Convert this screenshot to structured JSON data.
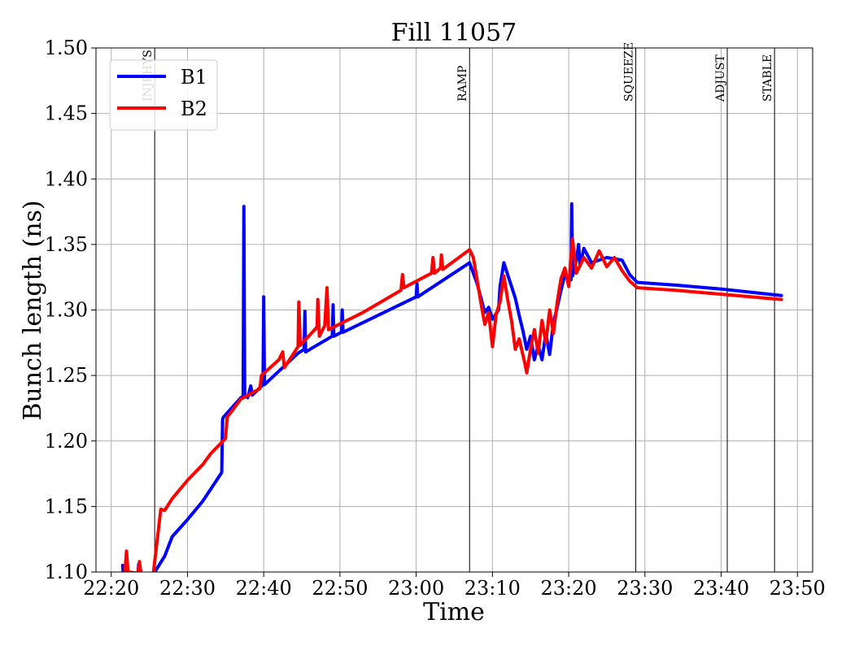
{
  "chart_data": {
    "type": "line",
    "title": "Fill 11057",
    "xlabel": "Time",
    "ylabel": "Bunch length (ns)",
    "xlim": [
      "22:18",
      "23:52"
    ],
    "ylim": [
      1.1,
      1.5
    ],
    "grid": true,
    "legend_position": "top-left",
    "x_ticks": [
      "22:20",
      "22:30",
      "22:40",
      "22:50",
      "23:00",
      "23:10",
      "23:20",
      "23:30",
      "23:40",
      "23:50"
    ],
    "y_ticks": [
      "1.10",
      "1.15",
      "1.20",
      "1.25",
      "1.30",
      "1.35",
      "1.40",
      "1.45",
      "1.50"
    ],
    "phases": [
      {
        "label": "INJPHYS",
        "time": "22:25.7"
      },
      {
        "label": "RAMP",
        "time": "23:07.0"
      },
      {
        "label": "SQUEEZE",
        "time": "23:28.8"
      },
      {
        "label": "ADJUST",
        "time": "23:40.8"
      },
      {
        "label": "STABLE",
        "time": "23:47.0"
      }
    ],
    "series": [
      {
        "name": "B1",
        "color": "#0000ff",
        "points": [
          [
            "22:21.5",
            1.105
          ],
          [
            "22:21.6",
            1.098
          ],
          [
            "22:23.5",
            1.098
          ],
          [
            "22:23.6",
            1.106
          ],
          [
            "22:23.7",
            1.098
          ],
          [
            "22:25.5",
            1.098
          ],
          [
            "22:27.0",
            1.112
          ],
          [
            "22:28.0",
            1.127
          ],
          [
            "22:30.0",
            1.14
          ],
          [
            "22:32.0",
            1.154
          ],
          [
            "22:34.5",
            1.176
          ],
          [
            "22:34.6",
            1.216
          ],
          [
            "22:34.7",
            1.218
          ],
          [
            "22:37.0",
            1.233
          ],
          [
            "22:37.3",
            1.234
          ],
          [
            "22:37.4",
            1.379
          ],
          [
            "22:37.5",
            1.235
          ],
          [
            "22:37.9",
            1.233
          ],
          [
            "22:38.3",
            1.242
          ],
          [
            "22:38.5",
            1.235
          ],
          [
            "22:39.9",
            1.243
          ],
          [
            "22:40.0",
            1.31
          ],
          [
            "22:40.1",
            1.243
          ],
          [
            "22:44.5",
            1.267
          ],
          [
            "22:45.3",
            1.27
          ],
          [
            "22:45.4",
            1.299
          ],
          [
            "22:45.5",
            1.268
          ],
          [
            "22:49.0",
            1.28
          ],
          [
            "22:49.1",
            1.304
          ],
          [
            "22:49.2",
            1.28
          ],
          [
            "22:50.2",
            1.283
          ],
          [
            "22:50.3",
            1.3
          ],
          [
            "22:50.4",
            1.283
          ],
          [
            "23:00.0",
            1.31
          ],
          [
            "23:00.1",
            1.32
          ],
          [
            "23:00.2",
            1.31
          ],
          [
            "23:07.0",
            1.336
          ],
          [
            "23:08.0",
            1.32
          ],
          [
            "23:09.0",
            1.298
          ],
          [
            "23:09.5",
            1.302
          ],
          [
            "23:10.0",
            1.293
          ],
          [
            "23:10.8",
            1.3
          ],
          [
            "23:11.0",
            1.318
          ],
          [
            "23:11.5",
            1.336
          ],
          [
            "23:12.0",
            1.327
          ],
          [
            "23:12.5",
            1.318
          ],
          [
            "23:13.0",
            1.309
          ],
          [
            "23:13.5",
            1.296
          ],
          [
            "23:14.0",
            1.284
          ],
          [
            "23:14.5",
            1.27
          ],
          [
            "23:15.0",
            1.28
          ],
          [
            "23:15.5",
            1.262
          ],
          [
            "23:16.0",
            1.273
          ],
          [
            "23:16.5",
            1.262
          ],
          [
            "23:17.0",
            1.282
          ],
          [
            "23:17.5",
            1.266
          ],
          [
            "23:18.0",
            1.29
          ],
          [
            "23:18.5",
            1.302
          ],
          [
            "23:19.0",
            1.315
          ],
          [
            "23:19.5",
            1.327
          ],
          [
            "23:20.3",
            1.323
          ],
          [
            "23:20.4",
            1.381
          ],
          [
            "23:20.5",
            1.326
          ],
          [
            "23:21.0",
            1.338
          ],
          [
            "23:21.3",
            1.35
          ],
          [
            "23:21.5",
            1.334
          ],
          [
            "23:22.0",
            1.347
          ],
          [
            "23:23.0",
            1.336
          ],
          [
            "23:25.0",
            1.34
          ],
          [
            "23:27.0",
            1.338
          ],
          [
            "23:28.0",
            1.327
          ],
          [
            "23:29.0",
            1.321
          ],
          [
            "23:34.0",
            1.319
          ],
          [
            "23:40.0",
            1.316
          ],
          [
            "23:47.9",
            1.311
          ]
        ]
      },
      {
        "name": "B2",
        "color": "#ff0000",
        "points": [
          [
            "22:21.8",
            1.1
          ],
          [
            "22:22.0",
            1.116
          ],
          [
            "22:22.2",
            1.1
          ],
          [
            "22:23.5",
            1.099
          ],
          [
            "22:23.7",
            1.108
          ],
          [
            "22:23.9",
            1.099
          ],
          [
            "22:25.5",
            1.098
          ],
          [
            "22:26.5",
            1.148
          ],
          [
            "22:27.0",
            1.147
          ],
          [
            "22:28.0",
            1.156
          ],
          [
            "22:30.0",
            1.17
          ],
          [
            "22:32.0",
            1.182
          ],
          [
            "22:33.0",
            1.19
          ],
          [
            "22:35.0",
            1.202
          ],
          [
            "22:35.2",
            1.218
          ],
          [
            "22:37.0",
            1.232
          ],
          [
            "22:39.5",
            1.24
          ],
          [
            "22:39.7",
            1.25
          ],
          [
            "22:42.0",
            1.262
          ],
          [
            "22:42.5",
            1.268
          ],
          [
            "22:42.7",
            1.256
          ],
          [
            "22:44.5",
            1.272
          ],
          [
            "22:44.6",
            1.306
          ],
          [
            "22:44.8",
            1.273
          ],
          [
            "22:47.0",
            1.287
          ],
          [
            "22:47.1",
            1.308
          ],
          [
            "22:47.3",
            1.28
          ],
          [
            "22:48.0",
            1.288
          ],
          [
            "22:48.3",
            1.317
          ],
          [
            "22:48.5",
            1.285
          ],
          [
            "22:53.0",
            1.298
          ],
          [
            "22:58.0",
            1.315
          ],
          [
            "22:58.2",
            1.327
          ],
          [
            "22:58.4",
            1.317
          ],
          [
            "23:02.0",
            1.328
          ],
          [
            "23:02.2",
            1.34
          ],
          [
            "23:02.4",
            1.328
          ],
          [
            "23:03.2",
            1.332
          ],
          [
            "23:03.3",
            1.342
          ],
          [
            "23:03.5",
            1.331
          ],
          [
            "23:07.0",
            1.346
          ],
          [
            "23:07.5",
            1.34
          ],
          [
            "23:08.5",
            1.305
          ],
          [
            "23:09.0",
            1.289
          ],
          [
            "23:09.5",
            1.298
          ],
          [
            "23:10.0",
            1.272
          ],
          [
            "23:10.5",
            1.297
          ],
          [
            "23:11.0",
            1.306
          ],
          [
            "23:11.5",
            1.326
          ],
          [
            "23:12.0",
            1.308
          ],
          [
            "23:12.5",
            1.292
          ],
          [
            "23:13.0",
            1.27
          ],
          [
            "23:13.5",
            1.278
          ],
          [
            "23:14.3",
            1.258
          ],
          [
            "23:14.5",
            1.252
          ],
          [
            "23:15.0",
            1.27
          ],
          [
            "23:15.5",
            1.285
          ],
          [
            "23:16.0",
            1.267
          ],
          [
            "23:16.5",
            1.292
          ],
          [
            "23:17.0",
            1.275
          ],
          [
            "23:17.5",
            1.3
          ],
          [
            "23:18.0",
            1.282
          ],
          [
            "23:18.5",
            1.306
          ],
          [
            "23:19.0",
            1.324
          ],
          [
            "23:19.5",
            1.332
          ],
          [
            "23:20.0",
            1.318
          ],
          [
            "23:20.5",
            1.354
          ],
          [
            "23:21.0",
            1.328
          ],
          [
            "23:22.0",
            1.34
          ],
          [
            "23:23.0",
            1.332
          ],
          [
            "23:24.0",
            1.345
          ],
          [
            "23:25.0",
            1.333
          ],
          [
            "23:26.0",
            1.34
          ],
          [
            "23:27.0",
            1.33
          ],
          [
            "23:28.0",
            1.322
          ],
          [
            "23:29.0",
            1.317
          ],
          [
            "23:34.0",
            1.315
          ],
          [
            "23:40.0",
            1.312
          ],
          [
            "23:47.9",
            1.308
          ]
        ]
      }
    ]
  }
}
